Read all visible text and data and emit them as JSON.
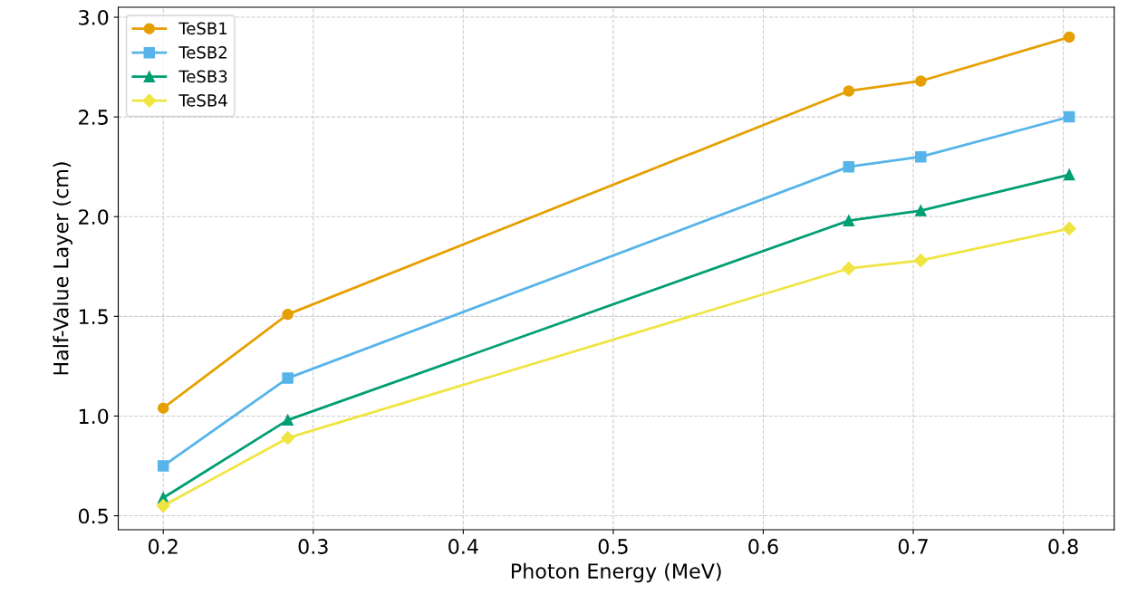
{
  "chart_data": {
    "type": "line",
    "xlabel": "Photon Energy (MeV)",
    "ylabel": "Half-Value Layer (cm)",
    "x": [
      0.2,
      0.283,
      0.657,
      0.705,
      0.804
    ],
    "series": [
      {
        "name": "TeSB1",
        "color": "#e69f00",
        "marker": "circle",
        "values": [
          1.04,
          1.51,
          2.63,
          2.68,
          2.9
        ]
      },
      {
        "name": "TeSB2",
        "color": "#56b4e9",
        "marker": "square",
        "values": [
          0.75,
          1.19,
          2.25,
          2.3,
          2.5
        ]
      },
      {
        "name": "TeSB3",
        "color": "#009e73",
        "marker": "triangle",
        "values": [
          0.59,
          0.98,
          1.98,
          2.03,
          2.21
        ]
      },
      {
        "name": "TeSB4",
        "color": "#f0e442",
        "marker": "diamond",
        "values": [
          0.55,
          0.89,
          1.74,
          1.78,
          1.94
        ]
      }
    ],
    "xlim": [
      0.17,
      0.834
    ],
    "ylim": [
      0.43,
      3.05
    ],
    "xticks": [
      0.2,
      0.3,
      0.4,
      0.5,
      0.6,
      0.7,
      0.8
    ],
    "yticks": [
      0.5,
      {
        "value": 1,
        "label": "1.0"
      },
      1.5,
      {
        "value": 2,
        "label": "2.0"
      },
      2.5,
      {
        "value": 3,
        "label": "3.0"
      }
    ],
    "grid": true,
    "legend": "top left",
    "line_style": "solid"
  }
}
